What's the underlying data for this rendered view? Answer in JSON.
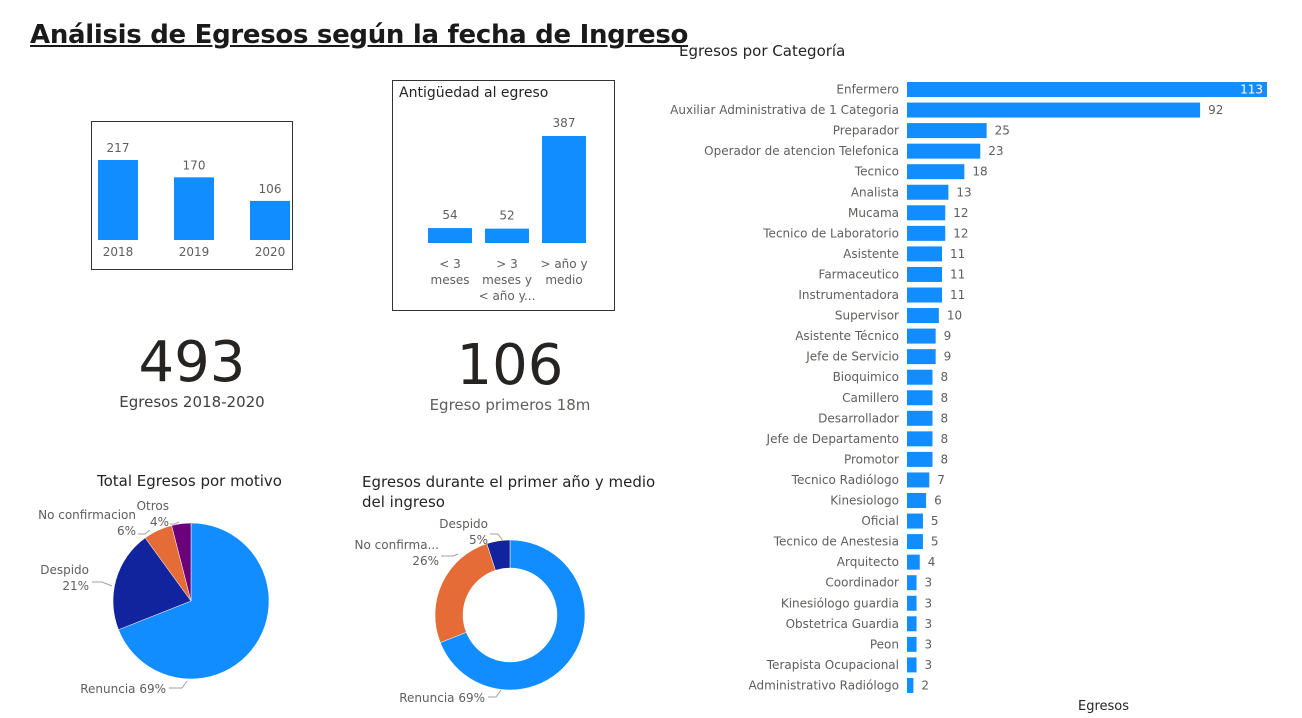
{
  "page": {
    "title": "Análisis de Egresos según la fecha de Ingreso"
  },
  "colors": {
    "blue": "#118dff",
    "navy": "#12239e",
    "orange": "#e66c37",
    "purple": "#6b007b"
  },
  "cards": [
    {
      "value": "493",
      "label": "Egresos 2018-2020"
    },
    {
      "value": "106",
      "label": "Egreso primeros 18m"
    }
  ],
  "chart_data": [
    {
      "id": "years",
      "type": "bar",
      "title": "",
      "categories": [
        "2018",
        "2019",
        "2020"
      ],
      "values": [
        217,
        170,
        106
      ]
    },
    {
      "id": "antiguedad",
      "type": "bar",
      "title": "Antigüedad al egreso",
      "categories": [
        [
          "< 3",
          "meses"
        ],
        [
          "> 3",
          "meses y",
          "< año y..."
        ],
        [
          "> año y",
          "medio"
        ]
      ],
      "values": [
        54,
        52,
        387
      ]
    },
    {
      "id": "motivo",
      "type": "pie",
      "title": "Total Egresos por motivo",
      "slices": [
        {
          "name": "Renuncia",
          "percent": 69,
          "label": "Renuncia 69%"
        },
        {
          "name": "Despido",
          "percent": 21,
          "label_lines": [
            "Despido",
            "21%"
          ]
        },
        {
          "name": "No confirmacion",
          "percent": 6,
          "label_lines": [
            "No confirmacion",
            "6%"
          ]
        },
        {
          "name": "Otros",
          "percent": 4,
          "label_lines": [
            "Otros",
            "4%"
          ]
        }
      ]
    },
    {
      "id": "primer-anio",
      "type": "pie",
      "title": "Egresos durante el primer año y medio del ingreso",
      "title_lines": [
        "Egresos durante el primer año y medio",
        "del ingreso"
      ],
      "slices": [
        {
          "name": "Renuncia",
          "percent": 69,
          "label": "Renuncia 69%"
        },
        {
          "name": "No confirma...",
          "percent": 26,
          "label_lines": [
            "No confirma...",
            "26%"
          ]
        },
        {
          "name": "Despido",
          "percent": 5,
          "label_lines": [
            "Despido",
            "5%"
          ]
        }
      ]
    },
    {
      "id": "categoria",
      "type": "bar",
      "orientation": "horizontal",
      "title": "Egresos por Categoría",
      "xlabel": "Egresos",
      "categories": [
        "Enfermero",
        "Auxiliar Administrativa de 1 Categoria",
        "Preparador",
        "Operador de atencion Telefonica",
        "Tecnico",
        "Analista",
        "Mucama",
        "Tecnico de Laboratorio",
        "Asistente",
        "Farmaceutico",
        "Instrumentadora",
        "Supervisor",
        "Asistente Técnico",
        "Jefe de Servicio",
        "Bioquimico",
        "Camillero",
        "Desarrollador",
        "Jefe de Departamento",
        "Promotor",
        "Tecnico Radiólogo",
        "Kinesiologo",
        "Oficial",
        "Tecnico de Anestesia",
        "Arquitecto",
        "Coordinador",
        "Kinesiólogo guardia",
        "Obstetrica Guardia",
        "Peon",
        "Terapista Ocupacional",
        "Administrativo Radiólogo"
      ],
      "values": [
        113,
        92,
        25,
        23,
        18,
        13,
        12,
        12,
        11,
        11,
        11,
        10,
        9,
        9,
        8,
        8,
        8,
        8,
        8,
        7,
        6,
        5,
        5,
        4,
        3,
        3,
        3,
        3,
        3,
        2
      ]
    }
  ]
}
